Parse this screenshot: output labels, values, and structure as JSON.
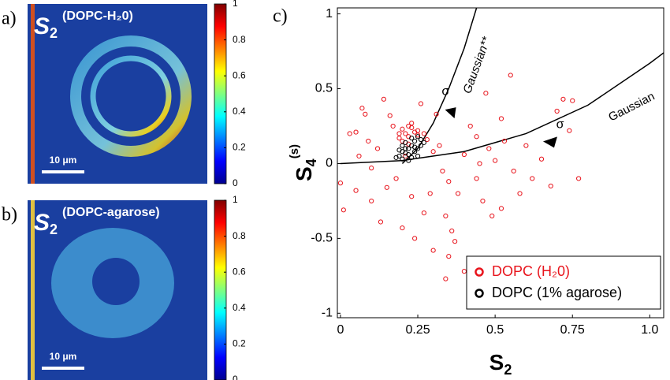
{
  "chart_data": [
    {
      "type": "heatmap",
      "panel_label": "a)",
      "title": "S",
      "title_sub": "2",
      "title_label": "(DOPC-H₂0)",
      "scale_bar": "10 μm",
      "clim": [
        0,
        1
      ],
      "cticks": [
        0,
        0.2,
        0.4,
        0.6,
        0.8,
        1
      ]
    },
    {
      "type": "heatmap",
      "panel_label": "b)",
      "title": "S",
      "title_sub": "2",
      "title_label": "(DOPC-agarose)",
      "scale_bar": "10 μm",
      "clim": [
        0,
        1
      ],
      "cticks": [
        0,
        0.2,
        0.4,
        0.6,
        0.8,
        1
      ]
    },
    {
      "type": "scatter",
      "panel_label": "c)",
      "x_label": "S",
      "x_label_sub": "2",
      "y_label": "S",
      "y_label_sub": "4",
      "y_label_sup": "(s)",
      "xlim": [
        -0.01,
        1.045
      ],
      "ylim": [
        -1.03,
        1.04
      ],
      "xticks": [
        0,
        0.25,
        0.5,
        0.75,
        {
          "value": 1,
          "label": "1.0"
        }
      ],
      "yticks": [
        -1,
        -0.5,
        0,
        0.5,
        1
      ],
      "legend": "lower right",
      "series": [
        {
          "name": "DOPC (H₂0)",
          "color": "#e8141c",
          "x": [
            0.07,
            0.08,
            0.05,
            0.03,
            0.0,
            0.01,
            0.05,
            0.1,
            0.12,
            0.14,
            0.16,
            0.17,
            0.15,
            0.13,
            0.18,
            0.19,
            0.2,
            0.22,
            0.23,
            0.25,
            0.27,
            0.28,
            0.3,
            0.32,
            0.33,
            0.35,
            0.34,
            0.36,
            0.37,
            0.35,
            0.38,
            0.4,
            0.42,
            0.44,
            0.45,
            0.46,
            0.48,
            0.47,
            0.52,
            0.5,
            0.55,
            0.56,
            0.58,
            0.6,
            0.62,
            0.65,
            0.68,
            0.7,
            0.72,
            0.75,
            0.77,
            0.74,
            0.52,
            0.49,
            0.2,
            0.24,
            0.3,
            0.4,
            0.34,
            0.27,
            0.1,
            0.06,
            0.09,
            0.26,
            0.29,
            0.21,
            0.31,
            0.44,
            0.53,
            0.23,
            0.21,
            0.22,
            0.24,
            0.2,
            0.23,
            0.19,
            0.25,
            0.22
          ],
          "y": [
            0.37,
            0.33,
            0.21,
            0.2,
            -0.13,
            -0.31,
            -0.18,
            -0.03,
            0.1,
            0.43,
            0.32,
            0.25,
            -0.16,
            -0.39,
            -0.1,
            0.2,
            0.23,
            0.25,
            0.27,
            0.22,
            0.2,
            0.16,
            0.08,
            0.12,
            -0.05,
            -0.12,
            -0.35,
            -0.45,
            -0.52,
            -0.62,
            -0.2,
            0.06,
            0.25,
            0.18,
            0.0,
            -0.25,
            0.1,
            0.47,
            0.3,
            0.02,
            0.59,
            -0.05,
            -0.2,
            0.12,
            -0.1,
            0.03,
            -0.15,
            0.35,
            0.43,
            0.42,
            -0.1,
            0.22,
            -0.3,
            -0.35,
            -0.43,
            -0.5,
            -0.58,
            -0.72,
            -0.77,
            -0.33,
            -0.25,
            0.05,
            0.15,
            0.4,
            -0.2,
            0.05,
            0.33,
            -0.1,
            0.15,
            -0.22,
            0.2,
            0.18,
            0.21,
            0.15,
            0.24,
            0.17,
            0.19,
            0.13
          ]
        },
        {
          "name": "DOPC (1% agarose)",
          "color": "#000000",
          "x": [
            0.19,
            0.2,
            0.21,
            0.22,
            0.23,
            0.24,
            0.25,
            0.26,
            0.22,
            0.2,
            0.18,
            0.21,
            0.23,
            0.24,
            0.25,
            0.26,
            0.19,
            0.22,
            0.2,
            0.24,
            0.27,
            0.23,
            0.21,
            0.25
          ],
          "y": [
            0.05,
            0.08,
            0.1,
            0.06,
            0.12,
            0.15,
            0.1,
            0.16,
            0.02,
            0.12,
            0.04,
            0.14,
            0.04,
            0.08,
            0.18,
            0.12,
            0.09,
            0.1,
            0.03,
            0.11,
            0.14,
            0.17,
            0.07,
            0.05
          ]
        }
      ],
      "curves": [
        {
          "name": "Gaussian",
          "x": [
            0,
            0.2,
            0.4,
            0.6,
            0.8,
            1.0,
            1.045
          ],
          "y": [
            0,
            0.02,
            0.08,
            0.2,
            0.39,
            0.67,
            0.74
          ]
        },
        {
          "name": "Gaussian**",
          "x": [
            0.2,
            0.25,
            0.3,
            0.35,
            0.4,
            0.44
          ],
          "y": [
            0,
            0.1,
            0.27,
            0.5,
            0.77,
            1.04
          ]
        }
      ],
      "annotations": [
        {
          "text": "σ",
          "x": 0.34,
          "y": 0.48
        },
        {
          "text": "σ",
          "x": 0.71,
          "y": 0.26
        }
      ]
    }
  ]
}
